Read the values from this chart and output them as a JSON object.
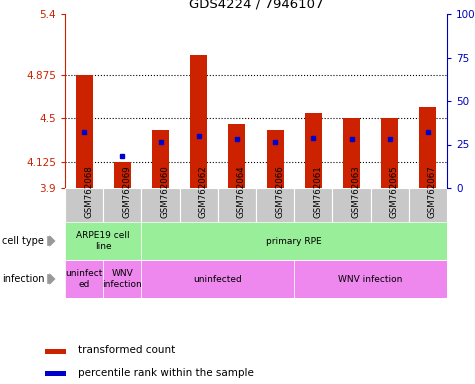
{
  "title": "GDS4224 / 7946107",
  "samples": [
    "GSM762068",
    "GSM762069",
    "GSM762060",
    "GSM762062",
    "GSM762064",
    "GSM762066",
    "GSM762061",
    "GSM762063",
    "GSM762065",
    "GSM762067"
  ],
  "red_values": [
    4.875,
    4.125,
    4.4,
    5.05,
    4.45,
    4.4,
    4.55,
    4.5,
    4.5,
    4.6
  ],
  "blue_values": [
    4.38,
    4.18,
    4.3,
    4.35,
    4.32,
    4.3,
    4.33,
    4.32,
    4.32,
    4.38
  ],
  "ymin": 3.9,
  "ymax": 5.4,
  "yticks": [
    3.9,
    4.125,
    4.5,
    4.875,
    5.4
  ],
  "ytick_labels": [
    "3.9",
    "4.125",
    "4.5",
    "4.875",
    "5.4"
  ],
  "right_yticks": [
    0,
    25,
    50,
    75,
    100
  ],
  "right_ytick_labels": [
    "0",
    "25",
    "50",
    "75",
    "100%"
  ],
  "dotted_lines": [
    4.125,
    4.5,
    4.875
  ],
  "bar_color": "#CC2200",
  "blue_color": "#0000CC",
  "left_axis_color": "#CC2200",
  "right_axis_color": "#0000BB",
  "xtick_bg": "#C8C8C8",
  "cell_groups": [
    {
      "label": "ARPE19 cell\nline",
      "start": 0,
      "end": 2,
      "color": "#99EE99"
    },
    {
      "label": "primary RPE",
      "start": 2,
      "end": 10,
      "color": "#99EE99"
    }
  ],
  "infect_groups": [
    {
      "label": "uninfect\ned",
      "start": 0,
      "end": 1,
      "color": "#EE88EE"
    },
    {
      "label": "WNV\ninfection",
      "start": 1,
      "end": 2,
      "color": "#EE88EE"
    },
    {
      "label": "uninfected",
      "start": 2,
      "end": 6,
      "color": "#EE88EE"
    },
    {
      "label": "WNV infection",
      "start": 6,
      "end": 10,
      "color": "#EE88EE"
    }
  ],
  "legend_red_label": "transformed count",
  "legend_blue_label": "percentile rank within the sample",
  "fig_width": 4.75,
  "fig_height": 3.84
}
